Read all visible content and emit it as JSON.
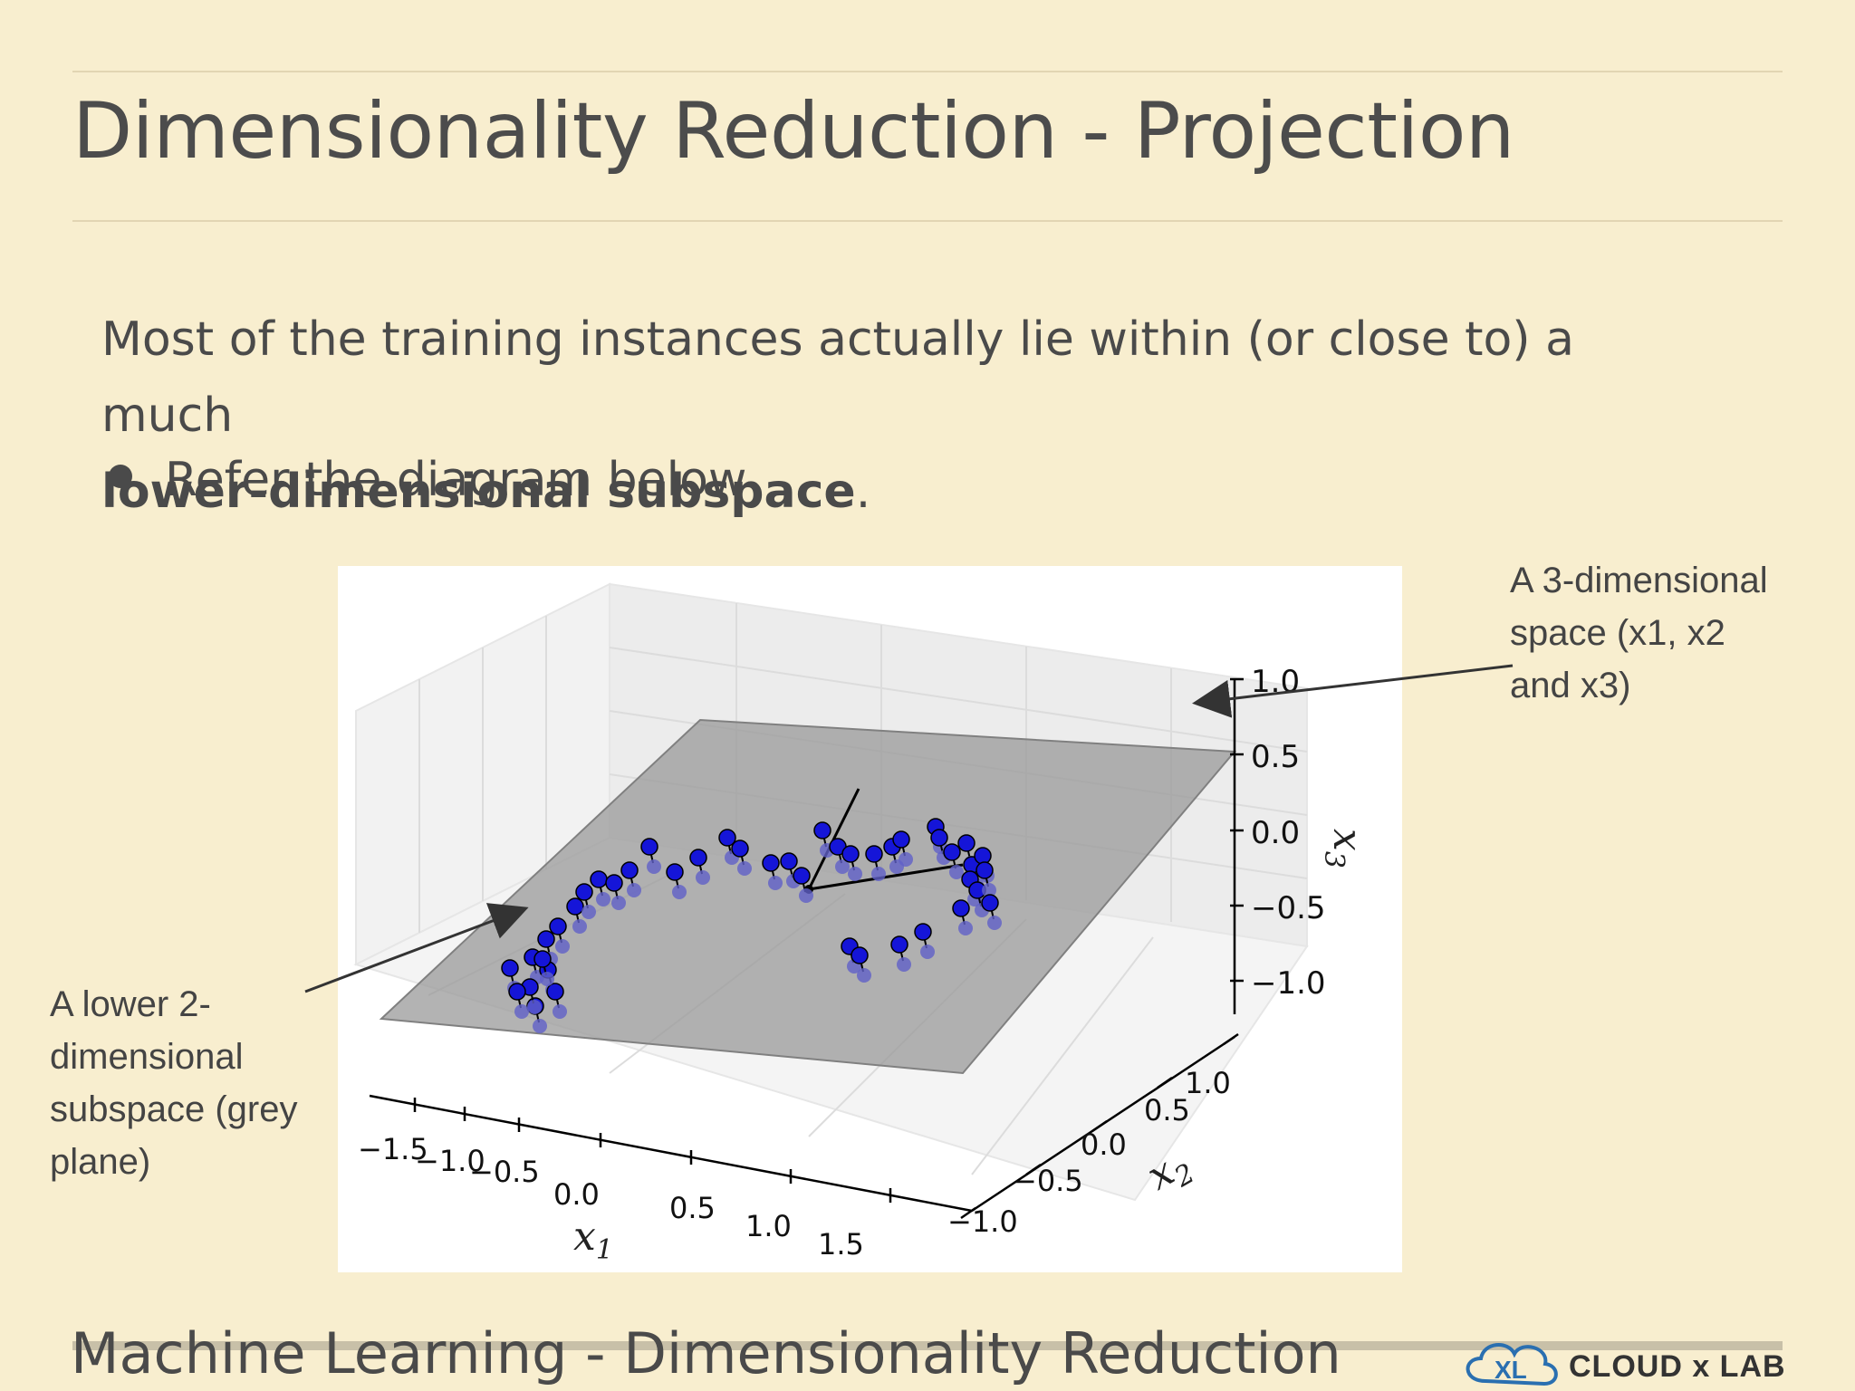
{
  "slide": {
    "title": "Dimensionality Reduction - Projection",
    "body_pre": "Most of the training instances actually lie within (or close to) a much",
    "body_bold": "lower-dimensional subspace",
    "body_post": ".",
    "bullet": "Refer the diagram below",
    "callout_3d": "A 3-dimensional space (x1, x2 and x3)",
    "callout_2d": "A lower 2-dimensional subspace (grey plane)",
    "footer": "Machine Learning - Dimensionality Reduction",
    "logo_text": "CLOUD x LAB"
  },
  "figure": {
    "x1_label": "x",
    "x1_sub": "1",
    "x2_label": "x",
    "x2_sub": "2",
    "x3_label": "x",
    "x3_sub": "3",
    "x1_ticks": [
      "−1.5",
      "−1.0",
      "−0.5",
      "0.0",
      "0.5",
      "1.0",
      "1.5"
    ],
    "x2_ticks": [
      "−1.0",
      "−0.5",
      "0.0",
      "0.5",
      "1.0"
    ],
    "x3_ticks": [
      "1.0",
      "0.5",
      "0.0",
      "−0.5",
      "−1.0"
    ],
    "colors": {
      "point": "#1515d8",
      "projection": "#6060c8",
      "plane": "#9a9a9a"
    }
  }
}
